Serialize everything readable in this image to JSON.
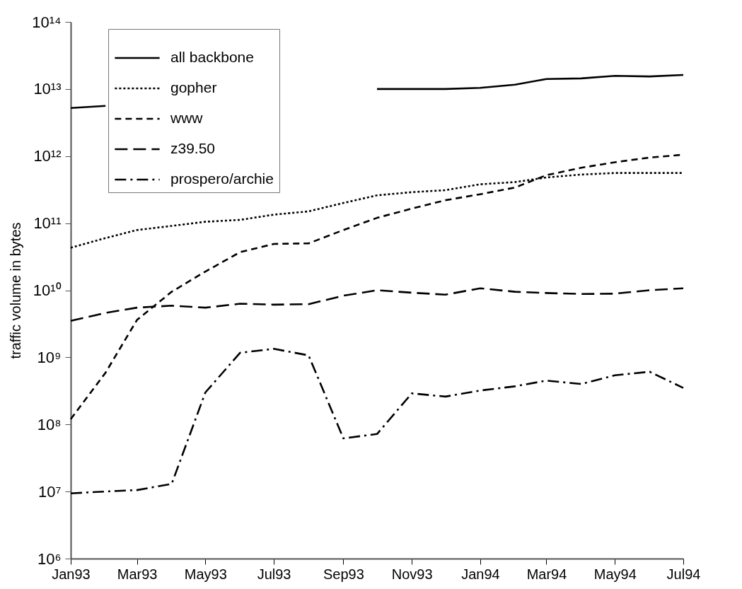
{
  "chart_data": {
    "type": "line",
    "ylabel": "traffic volume in bytes",
    "log": "y",
    "grid": false,
    "legend": "top left",
    "x": [
      "1993-01",
      "1993-02",
      "1993-03",
      "1993-04",
      "1993-05",
      "1993-06",
      "1993-07",
      "1993-08",
      "1993-09",
      "1993-10",
      "1993-11",
      "1993-12",
      "1994-01",
      "1994-02",
      "1994-03",
      "1994-04",
      "1994-05",
      "1994-06",
      "1994-07"
    ],
    "xlim": [
      "1993-01",
      "1994-07"
    ],
    "xticks": [
      {
        "value": "1993-01",
        "label": "Jan93"
      },
      {
        "value": "1993-03",
        "label": "Mar93"
      },
      {
        "value": "1993-05",
        "label": "May93"
      },
      {
        "value": "1993-07",
        "label": "Jul93"
      },
      {
        "value": "1993-09",
        "label": "Sep93"
      },
      {
        "value": "1993-11",
        "label": "Nov93"
      },
      {
        "value": "1994-01",
        "label": "Jan94"
      },
      {
        "value": "1994-03",
        "label": "Mar94"
      },
      {
        "value": "1994-05",
        "label": "May94"
      },
      {
        "value": "1994-07",
        "label": "Jul94"
      }
    ],
    "ylim": [
      1000000.0,
      100000000000000.0
    ],
    "yticks": [
      {
        "value": 1000000.0,
        "label": "10⁶"
      },
      {
        "value": 10000000.0,
        "label": "10⁷"
      },
      {
        "value": 100000000.0,
        "label": "10⁸"
      },
      {
        "value": 1000000000.0,
        "label": "10⁹"
      },
      {
        "value": 10000000000.0,
        "label": "10¹⁰"
      },
      {
        "value": 100000000000.0,
        "label": "10¹¹"
      },
      {
        "value": 1000000000000.0,
        "label": "10¹²"
      },
      {
        "value": 10000000000000.0,
        "label": "10¹³"
      },
      {
        "value": 100000000000000.0,
        "label": "10¹⁴"
      }
    ],
    "series": [
      {
        "name": "all backbone",
        "color": "#000000",
        "line_style": "solid",
        "values": [
          5200000000000.0,
          5600000000000.0,
          null,
          null,
          null,
          null,
          null,
          null,
          null,
          10000000000000.0,
          10000000000000.0,
          10000000000000.0,
          10400000000000.0,
          11600000000000.0,
          14100000000000.0,
          14400000000000.0,
          15700000000000.0,
          15400000000000.0,
          16200000000000.0
        ]
      },
      {
        "name": "gopher",
        "color": "#000000",
        "line_style": "dotted",
        "values": [
          43000000000.0,
          60000000000.0,
          79000000000.0,
          91000000000.0,
          105000000000.0,
          112000000000.0,
          134000000000.0,
          150000000000.0,
          200000000000.0,
          260000000000.0,
          290000000000.0,
          310000000000.0,
          380000000000.0,
          410000000000.0,
          480000000000.0,
          530000000000.0,
          560000000000.0,
          560000000000.0,
          560000000000.0
        ]
      },
      {
        "name": "www",
        "color": "#000000",
        "line_style": "dashed",
        "values": [
          120000000.0,
          590000000.0,
          3600000000.0,
          9500000000.0,
          19000000000.0,
          37000000000.0,
          49000000000.0,
          50000000000.0,
          79000000000.0,
          120000000000.0,
          165000000000.0,
          220000000000.0,
          270000000000.0,
          340000000000.0,
          520000000000.0,
          670000000000.0,
          810000000000.0,
          950000000000.0,
          1050000000000.0
        ]
      },
      {
        "name": "z39.50",
        "color": "#000000",
        "line_style": "longdash",
        "values": [
          3500000000.0,
          4600000000.0,
          5500000000.0,
          5900000000.0,
          5500000000.0,
          6300000000.0,
          6100000000.0,
          6200000000.0,
          8300000000.0,
          10000000000.0,
          9200000000.0,
          8600000000.0,
          10700000000.0,
          9500000000.0,
          9100000000.0,
          8800000000.0,
          8900000000.0,
          10000000000.0,
          10700000000.0
        ]
      },
      {
        "name": "prospero/archie",
        "color": "#000000",
        "line_style": "dashdot",
        "values": [
          9400000.0,
          10000000.0,
          10500000.0,
          13000000.0,
          300000000.0,
          1170000000.0,
          1340000000.0,
          1070000000.0,
          62000000.0,
          72000000.0,
          290000000.0,
          260000000.0,
          320000000.0,
          370000000.0,
          450000000.0,
          400000000.0,
          540000000.0,
          610000000.0,
          350000000.0
        ]
      }
    ]
  }
}
